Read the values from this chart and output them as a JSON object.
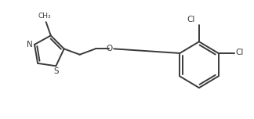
{
  "bg_color": "#ffffff",
  "line_color": "#3a3a3a",
  "text_color": "#3a3a3a",
  "line_width": 1.4,
  "font_size": 7.5,
  "figsize": [
    3.24,
    1.52
  ],
  "dpi": 100,
  "xlim": [
    0,
    10
  ],
  "ylim": [
    0,
    4.5
  ]
}
